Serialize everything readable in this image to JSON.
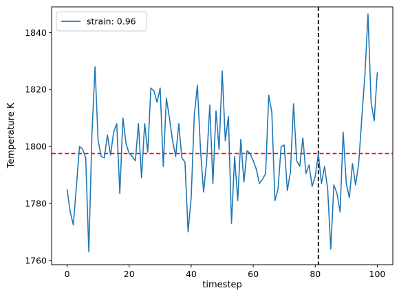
{
  "chart_data": {
    "type": "line",
    "xlabel": "timestep",
    "ylabel": "Temperature K",
    "xlim": [
      -5,
      105
    ],
    "ylim": [
      1758.5,
      1849
    ],
    "xticks": [
      0,
      20,
      40,
      60,
      80,
      100
    ],
    "yticks": [
      1760,
      1780,
      1800,
      1820,
      1840
    ],
    "grid": false,
    "legend": {
      "placement": "top-left"
    },
    "series": [
      {
        "name": "strain: 0.96",
        "color": "#1f77b4",
        "x": [
          0,
          1,
          2,
          3,
          4,
          5,
          6,
          7,
          8,
          9,
          10,
          11,
          12,
          13,
          14,
          15,
          16,
          17,
          18,
          19,
          20,
          21,
          22,
          23,
          24,
          25,
          26,
          27,
          28,
          29,
          30,
          31,
          32,
          33,
          34,
          35,
          36,
          37,
          38,
          39,
          40,
          41,
          42,
          43,
          44,
          45,
          46,
          47,
          48,
          49,
          50,
          51,
          52,
          53,
          54,
          55,
          56,
          57,
          58,
          59,
          60,
          61,
          62,
          63,
          64,
          65,
          66,
          67,
          68,
          69,
          70,
          71,
          72,
          73,
          74,
          75,
          76,
          77,
          78,
          79,
          80,
          81,
          82,
          83,
          84,
          85,
          86,
          87,
          88,
          89,
          90,
          91,
          92,
          93,
          94,
          95,
          96,
          97,
          98,
          99,
          100
        ],
        "values": [
          1785,
          1777,
          1772.5,
          1786,
          1800,
          1799,
          1796,
          1763,
          1804,
          1828,
          1802,
          1796.5,
          1796,
          1804,
          1797,
          1805,
          1808,
          1783.5,
          1810,
          1801,
          1797.5,
          1796.5,
          1795,
          1808,
          1789,
          1808,
          1798,
          1820.5,
          1819.5,
          1815.5,
          1820.5,
          1793,
          1817,
          1810,
          1802,
          1796.5,
          1808,
          1796,
          1794.5,
          1770,
          1782,
          1811,
          1821.5,
          1799,
          1784,
          1795,
          1814.5,
          1787,
          1812.5,
          1799,
          1826.5,
          1802,
          1810.5,
          1773,
          1796.5,
          1781,
          1802.5,
          1787.5,
          1798.5,
          1797.5,
          1795,
          1792,
          1787,
          1788.5,
          1790.5,
          1818,
          1812,
          1781,
          1785,
          1800,
          1800.5,
          1784.5,
          1791,
          1815,
          1795,
          1793,
          1803,
          1790.5,
          1793.5,
          1786,
          1789.5,
          1797.5,
          1787,
          1793,
          1785,
          1764,
          1786.5,
          1783.5,
          1777,
          1805,
          1787,
          1782,
          1794,
          1786.5,
          1794,
          1810,
          1825,
          1846.5,
          1815.5,
          1809,
          1826
        ]
      }
    ],
    "reference_lines": [
      {
        "orientation": "horizontal",
        "value": 1797.5,
        "color": "#ff0000",
        "style": "dashed"
      },
      {
        "orientation": "vertical",
        "value": 81,
        "color": "#000000",
        "style": "dashed"
      }
    ]
  }
}
